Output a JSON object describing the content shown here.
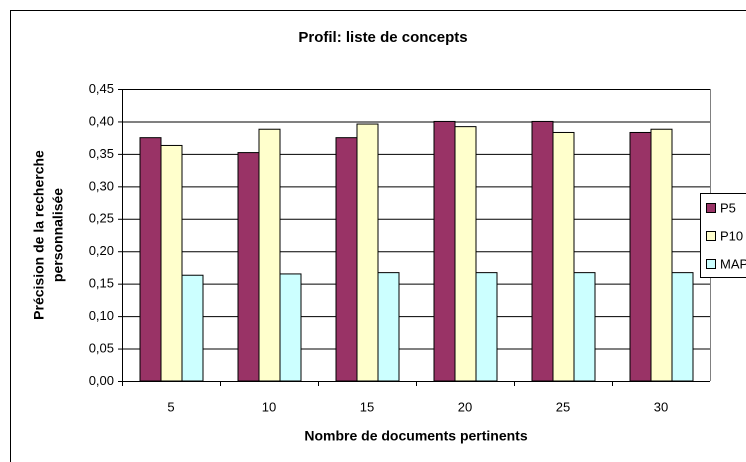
{
  "chart_data": {
    "type": "bar",
    "title": "Profil: liste de concepts",
    "xlabel": "Nombre de documents pertinents",
    "ylabel": [
      "Précision de la recherche",
      "personnalisée"
    ],
    "categories": [
      "5",
      "10",
      "15",
      "20",
      "25",
      "30"
    ],
    "series": [
      {
        "name": "P5",
        "color": "#993366",
        "values": [
          0.375,
          0.352,
          0.375,
          0.4,
          0.4,
          0.383
        ]
      },
      {
        "name": "P10",
        "color": "#ffffcc",
        "values": [
          0.363,
          0.388,
          0.396,
          0.392,
          0.383,
          0.388
        ]
      },
      {
        "name": "MAP",
        "color": "#ccffff",
        "values": [
          0.163,
          0.165,
          0.167,
          0.167,
          0.167,
          0.167
        ]
      }
    ],
    "ylim": [
      0,
      0.45
    ],
    "yticks": [
      {
        "value": 0,
        "label": "0,00"
      },
      {
        "value": 0.05,
        "label": "0,05"
      },
      {
        "value": 0.1,
        "label": "0,10"
      },
      {
        "value": 0.15,
        "label": "0,15"
      },
      {
        "value": 0.2,
        "label": "0,20"
      },
      {
        "value": 0.25,
        "label": "0,25"
      },
      {
        "value": 0.3,
        "label": "0,30"
      },
      {
        "value": 0.35,
        "label": "0,35"
      },
      {
        "value": 0.4,
        "label": "0,40"
      },
      {
        "value": 0.45,
        "label": "0,45"
      }
    ],
    "grid": true,
    "legend": "right"
  }
}
